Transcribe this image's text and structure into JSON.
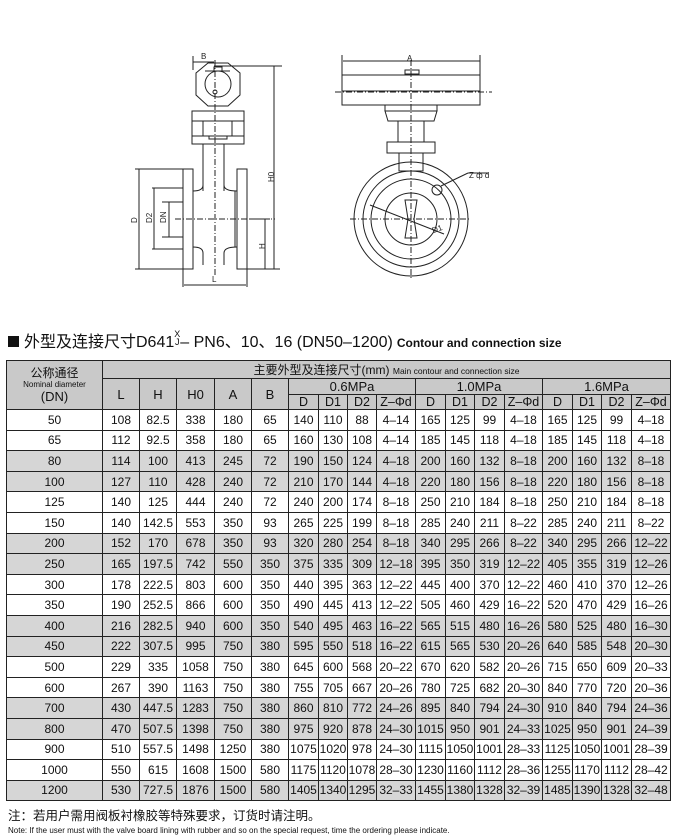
{
  "drawing": {
    "labels": {
      "B": "B",
      "A": "A",
      "H0": "H0",
      "D": "D",
      "D2": "D2",
      "DN": "DN",
      "H": "H",
      "L": "L",
      "Zd": "Z ф d",
      "D1": "D1"
    }
  },
  "title": {
    "cn": "外型及连接尺寸D641",
    "sup_top": "X",
    "sup_bottom": "J",
    "rest": "– PN6、10、16 (DN50–1200)",
    "en": "Contour and connection size"
  },
  "table": {
    "nominal_cn": "公称通径",
    "nominal_en": "Nominal diameter",
    "nominal_dn": "(DN)",
    "main_cn": "主要外型及连接尺寸(mm)",
    "main_en": "Main contour and connection size",
    "dim_cols": [
      "L",
      "H",
      "H0",
      "A",
      "B"
    ],
    "pressure_groups": [
      "0.6MPa",
      "1.0MPa",
      "1.6MPa"
    ],
    "sub_cols": [
      "D",
      "D1",
      "D2",
      "Z–Φd"
    ],
    "rows": [
      [
        "50",
        "108",
        "82.5",
        "338",
        "180",
        "65",
        "140",
        "110",
        "88",
        "4–14",
        "165",
        "125",
        "99",
        "4–18",
        "165",
        "125",
        "99",
        "4–18"
      ],
      [
        "65",
        "112",
        "92.5",
        "358",
        "180",
        "65",
        "160",
        "130",
        "108",
        "4–14",
        "185",
        "145",
        "118",
        "4–18",
        "185",
        "145",
        "118",
        "4–18"
      ],
      [
        "80",
        "114",
        "100",
        "413",
        "245",
        "72",
        "190",
        "150",
        "124",
        "4–18",
        "200",
        "160",
        "132",
        "8–18",
        "200",
        "160",
        "132",
        "8–18"
      ],
      [
        "100",
        "127",
        "110",
        "428",
        "240",
        "72",
        "210",
        "170",
        "144",
        "4–18",
        "220",
        "180",
        "156",
        "8–18",
        "220",
        "180",
        "156",
        "8–18"
      ],
      [
        "125",
        "140",
        "125",
        "444",
        "240",
        "72",
        "240",
        "200",
        "174",
        "8–18",
        "250",
        "210",
        "184",
        "8–18",
        "250",
        "210",
        "184",
        "8–18"
      ],
      [
        "150",
        "140",
        "142.5",
        "553",
        "350",
        "93",
        "265",
        "225",
        "199",
        "8–18",
        "285",
        "240",
        "211",
        "8–22",
        "285",
        "240",
        "211",
        "8–22"
      ],
      [
        "200",
        "152",
        "170",
        "678",
        "350",
        "93",
        "320",
        "280",
        "254",
        "8–18",
        "340",
        "295",
        "266",
        "8–22",
        "340",
        "295",
        "266",
        "12–22"
      ],
      [
        "250",
        "165",
        "197.5",
        "742",
        "550",
        "350",
        "375",
        "335",
        "309",
        "12–18",
        "395",
        "350",
        "319",
        "12–22",
        "405",
        "355",
        "319",
        "12–26"
      ],
      [
        "300",
        "178",
        "222.5",
        "803",
        "600",
        "350",
        "440",
        "395",
        "363",
        "12–22",
        "445",
        "400",
        "370",
        "12–22",
        "460",
        "410",
        "370",
        "12–26"
      ],
      [
        "350",
        "190",
        "252.5",
        "866",
        "600",
        "350",
        "490",
        "445",
        "413",
        "12–22",
        "505",
        "460",
        "429",
        "16–22",
        "520",
        "470",
        "429",
        "16–26"
      ],
      [
        "400",
        "216",
        "282.5",
        "940",
        "600",
        "350",
        "540",
        "495",
        "463",
        "16–22",
        "565",
        "515",
        "480",
        "16–26",
        "580",
        "525",
        "480",
        "16–30"
      ],
      [
        "450",
        "222",
        "307.5",
        "995",
        "750",
        "380",
        "595",
        "550",
        "518",
        "16–22",
        "615",
        "565",
        "530",
        "20–26",
        "640",
        "585",
        "548",
        "20–30"
      ],
      [
        "500",
        "229",
        "335",
        "1058",
        "750",
        "380",
        "645",
        "600",
        "568",
        "20–22",
        "670",
        "620",
        "582",
        "20–26",
        "715",
        "650",
        "609",
        "20–33"
      ],
      [
        "600",
        "267",
        "390",
        "1163",
        "750",
        "380",
        "755",
        "705",
        "667",
        "20–26",
        "780",
        "725",
        "682",
        "20–30",
        "840",
        "770",
        "720",
        "20–36"
      ],
      [
        "700",
        "430",
        "447.5",
        "1283",
        "750",
        "380",
        "860",
        "810",
        "772",
        "24–26",
        "895",
        "840",
        "794",
        "24–30",
        "910",
        "840",
        "794",
        "24–36"
      ],
      [
        "800",
        "470",
        "507.5",
        "1398",
        "750",
        "380",
        "975",
        "920",
        "878",
        "24–30",
        "1015",
        "950",
        "901",
        "24–33",
        "1025",
        "950",
        "901",
        "24–39"
      ],
      [
        "900",
        "510",
        "557.5",
        "1498",
        "1250",
        "380",
        "1075",
        "1020",
        "978",
        "24–30",
        "1115",
        "1050",
        "1001",
        "28–33",
        "1125",
        "1050",
        "1001",
        "28–39"
      ],
      [
        "1000",
        "550",
        "615",
        "1608",
        "1500",
        "580",
        "1175",
        "1120",
        "1078",
        "28–30",
        "1230",
        "1160",
        "1112",
        "28–36",
        "1255",
        "1170",
        "1112",
        "28–42"
      ],
      [
        "1200",
        "530",
        "727.5",
        "1876",
        "1500",
        "580",
        "1405",
        "1340",
        "1295",
        "32–33",
        "1455",
        "1380",
        "1328",
        "32–39",
        "1485",
        "1390",
        "1328",
        "32–48"
      ]
    ],
    "shaded_row_color": "#d6d6d6",
    "header_color": "#c9c9c9"
  },
  "note": {
    "cn": "注：若用户需用阀板衬橡胶等特殊要求，订货时请注明。",
    "en": "Note: If the user must with the valve board lining with rubber and so on the special request, time the ordering please indicate."
  }
}
